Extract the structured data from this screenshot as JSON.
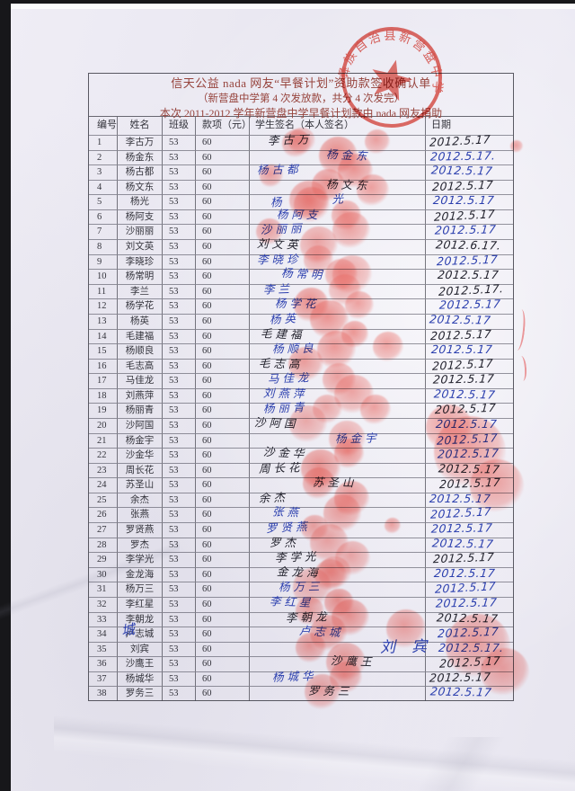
{
  "palette": {
    "paper": "#ebe9f2",
    "line": "#46464f",
    "title_red": "#96433c",
    "seal_red": "#e0473d",
    "ink_blue": "#2b3fae",
    "ink_black": "#23232e",
    "fingerprint": "#f35c52"
  },
  "doc": {
    "title_line1": "信天公益 nada 网友“早餐计划”资助款签收确认单",
    "title_line2": "（新营盘中学第 4 次发放款，共分 4 次发完）",
    "title_line3": "本次 2011-2012 学年新营盘中学早餐计划款由 nada 网友捐助"
  },
  "seal": {
    "arc_text": "彝族自治县新营盘中学"
  },
  "table": {
    "columns": [
      "编号",
      "姓名",
      "班级",
      "款项（元）",
      "学生签名（本人签名）",
      "日期"
    ],
    "rows": [
      {
        "no": "1",
        "name": "李古万",
        "cls": "53",
        "amount": "60",
        "signature": "李古万",
        "date": "2012.5.17"
      },
      {
        "no": "2",
        "name": "杨金东",
        "cls": "53",
        "amount": "60",
        "signature": "杨金东",
        "date": "2012.5.17."
      },
      {
        "no": "3",
        "name": "杨古都",
        "cls": "53",
        "amount": "60",
        "signature": "杨古都",
        "date": "2012.5.17"
      },
      {
        "no": "4",
        "name": "杨文东",
        "cls": "53",
        "amount": "60",
        "signature": "杨文东",
        "date": "2012.5.17"
      },
      {
        "no": "5",
        "name": "杨光",
        "cls": "53",
        "amount": "60",
        "signature": "杨光",
        "date": "2012.5.17"
      },
      {
        "no": "6",
        "name": "杨阿支",
        "cls": "53",
        "amount": "60",
        "signature": "杨阿支",
        "date": "2012.5.17"
      },
      {
        "no": "7",
        "name": "沙丽丽",
        "cls": "53",
        "amount": "60",
        "signature": "沙丽丽",
        "date": "2012.5.17"
      },
      {
        "no": "8",
        "name": "刘文英",
        "cls": "53",
        "amount": "60",
        "signature": "刘文英",
        "date": "2012.6.17."
      },
      {
        "no": "9",
        "name": "李晓珍",
        "cls": "53",
        "amount": "60",
        "signature": "李晓珍",
        "date": "2012.5.17"
      },
      {
        "no": "10",
        "name": "杨常明",
        "cls": "53",
        "amount": "60",
        "signature": "杨常明",
        "date": "2012.5.17"
      },
      {
        "no": "11",
        "name": "李兰",
        "cls": "53",
        "amount": "60",
        "signature": "李兰",
        "date": "2012.5.17."
      },
      {
        "no": "12",
        "name": "杨学花",
        "cls": "53",
        "amount": "60",
        "signature": "杨学花",
        "date": "2012.5.17"
      },
      {
        "no": "13",
        "name": "杨英",
        "cls": "53",
        "amount": "60",
        "signature": "杨英",
        "date": "2012.5.17"
      },
      {
        "no": "14",
        "name": "毛建福",
        "cls": "53",
        "amount": "60",
        "signature": "毛建福",
        "date": "2012.5.17"
      },
      {
        "no": "15",
        "name": "杨顺良",
        "cls": "53",
        "amount": "60",
        "signature": "杨顺良",
        "date": "2012.5.17"
      },
      {
        "no": "16",
        "name": "毛志高",
        "cls": "53",
        "amount": "60",
        "signature": "毛志高",
        "date": "2012.5.17"
      },
      {
        "no": "17",
        "name": "马佳龙",
        "cls": "53",
        "amount": "60",
        "signature": "马佳龙",
        "date": "2012.5.17"
      },
      {
        "no": "18",
        "name": "刘燕萍",
        "cls": "53",
        "amount": "60",
        "signature": "刘燕萍",
        "date": "2012.5.17"
      },
      {
        "no": "19",
        "name": "杨丽青",
        "cls": "53",
        "amount": "60",
        "signature": "杨丽青",
        "date": "2012.5.17"
      },
      {
        "no": "20",
        "name": "沙阿国",
        "cls": "53",
        "amount": "60",
        "signature": "沙阿国",
        "date": "2012.5.17"
      },
      {
        "no": "21",
        "name": "杨金宇",
        "cls": "53",
        "amount": "60",
        "signature": "杨金宇",
        "date": "2012.5.17"
      },
      {
        "no": "22",
        "name": "沙金华",
        "cls": "53",
        "amount": "60",
        "signature": "沙金华",
        "date": "2012.5.17"
      },
      {
        "no": "23",
        "name": "周长花",
        "cls": "53",
        "amount": "60",
        "signature": "周长花",
        "date": "2012.5.17"
      },
      {
        "no": "24",
        "name": "苏圣山",
        "cls": "53",
        "amount": "60",
        "signature": "苏圣山",
        "date": "2012.5.17"
      },
      {
        "no": "25",
        "name": "余杰",
        "cls": "53",
        "amount": "60",
        "signature": "余杰",
        "date": "2012.5.17"
      },
      {
        "no": "26",
        "name": "张燕",
        "cls": "53",
        "amount": "60",
        "signature": "张燕",
        "date": "2012.5.17"
      },
      {
        "no": "27",
        "name": "罗贤燕",
        "cls": "53",
        "amount": "60",
        "signature": "罗贤燕",
        "date": "2012.5.17"
      },
      {
        "no": "28",
        "name": "罗杰",
        "cls": "53",
        "amount": "60",
        "signature": "罗杰",
        "date": "2012.5.17"
      },
      {
        "no": "29",
        "name": "李学光",
        "cls": "53",
        "amount": "60",
        "signature": "李学光",
        "date": "2012.5.17"
      },
      {
        "no": "30",
        "name": "金龙海",
        "cls": "53",
        "amount": "60",
        "signature": "金龙海",
        "date": "2012.5.17"
      },
      {
        "no": "31",
        "name": "杨万三",
        "cls": "53",
        "amount": "60",
        "signature": "杨万三",
        "date": "2012.5.17"
      },
      {
        "no": "32",
        "name": "李红星",
        "cls": "53",
        "amount": "60",
        "signature": "李红星",
        "date": "2012.5.17"
      },
      {
        "no": "33",
        "name": "李朝龙",
        "cls": "53",
        "amount": "60",
        "signature": "李朝龙",
        "date": "2012.5.17"
      },
      {
        "no": "34",
        "name": "卢志城",
        "cls": "53",
        "amount": "60",
        "signature": "卢志城",
        "date": "2012.5.17",
        "overwrite": "城"
      },
      {
        "no": "35",
        "name": "刘宾",
        "cls": "53",
        "amount": "60",
        "signature": "刘宾",
        "date": "2012.5.17."
      },
      {
        "no": "36",
        "name": "沙鹰王",
        "cls": "53",
        "amount": "60",
        "signature": "沙鹰王",
        "date": "2012.5.17"
      },
      {
        "no": "37",
        "name": "杨城华",
        "cls": "53",
        "amount": "60",
        "signature": "杨城华",
        "date": "2012.5.17"
      },
      {
        "no": "38",
        "name": "罗务三",
        "cls": "53",
        "amount": "60",
        "signature": "罗务三",
        "date": "2012.5.17"
      }
    ]
  }
}
